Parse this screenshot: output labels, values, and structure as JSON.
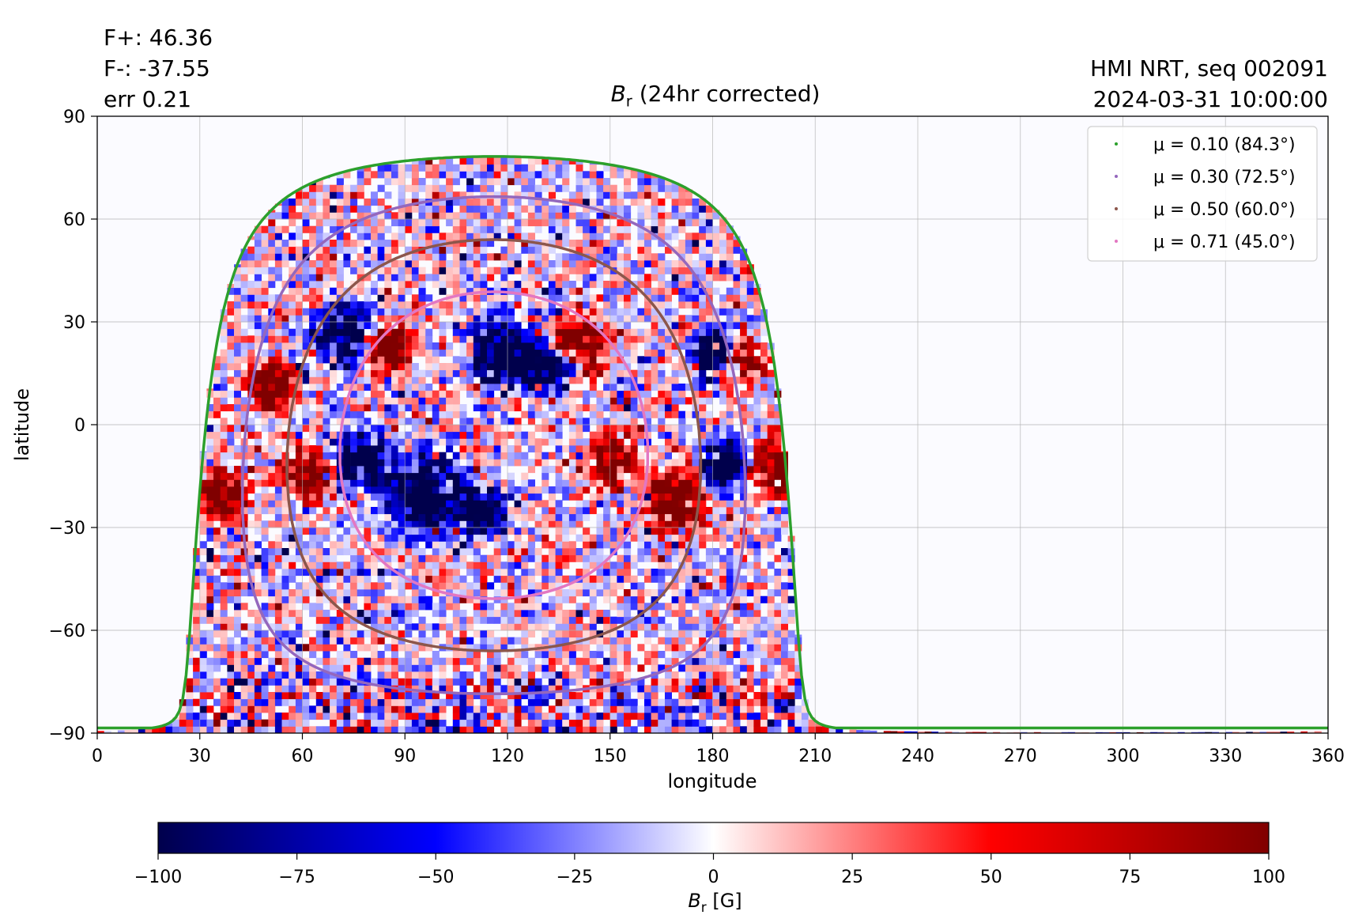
{
  "header": {
    "f_plus": "F+: 46.36",
    "f_minus": "F-: -37.55",
    "err": "err 0.21",
    "source": "HMI NRT, seq 002091",
    "timestamp": "2024-03-31 10:00:00"
  },
  "chart_data": {
    "type": "heatmap",
    "title_symbol": "B",
    "title_sub": "r",
    "title_rest": " (24hr corrected)",
    "xlabel": "longitude",
    "ylabel": "latitude",
    "xlim": [
      0,
      360
    ],
    "ylim": [
      -90,
      90
    ],
    "xticks": [
      0,
      30,
      60,
      90,
      120,
      150,
      180,
      210,
      240,
      270,
      300,
      330,
      360
    ],
    "yticks": [
      -90,
      -60,
      -30,
      0,
      30,
      60,
      90
    ],
    "ytick_labels": [
      "−90",
      "−60",
      "−30",
      "0",
      "30",
      "60",
      "90"
    ],
    "grid": true,
    "legend_position": "top-right",
    "disk_center": [
      116,
      -6
    ],
    "series": [
      {
        "name": "μ = 0.10 (84.3°)",
        "mu": 0.1,
        "angle_deg": 84.3,
        "color": "#2ca02c"
      },
      {
        "name": "μ = 0.30 (72.5°)",
        "mu": 0.3,
        "angle_deg": 72.5,
        "color": "#9467bd"
      },
      {
        "name": "μ = 0.50 (60.0°)",
        "mu": 0.5,
        "angle_deg": 60.0,
        "color": "#8c564b"
      },
      {
        "name": "μ = 0.71 (45.0°)",
        "mu": 0.71,
        "angle_deg": 45.0,
        "color": "#e377c2"
      }
    ],
    "colorbar": {
      "min": -100,
      "max": 100,
      "ticks": [
        -100,
        -75,
        -50,
        -25,
        0,
        25,
        50,
        75,
        100
      ],
      "tick_labels": [
        "−100",
        "−75",
        "−50",
        "−25",
        "0",
        "25",
        "50",
        "75",
        "100"
      ],
      "label_symbol": "B",
      "label_sub": "r",
      "label_unit": " [G]",
      "colormap": "seismic",
      "colors": [
        "#00004c",
        "#0000ff",
        "#ffffff",
        "#ff0000",
        "#800000"
      ]
    },
    "background_color": "#fbfbff"
  }
}
